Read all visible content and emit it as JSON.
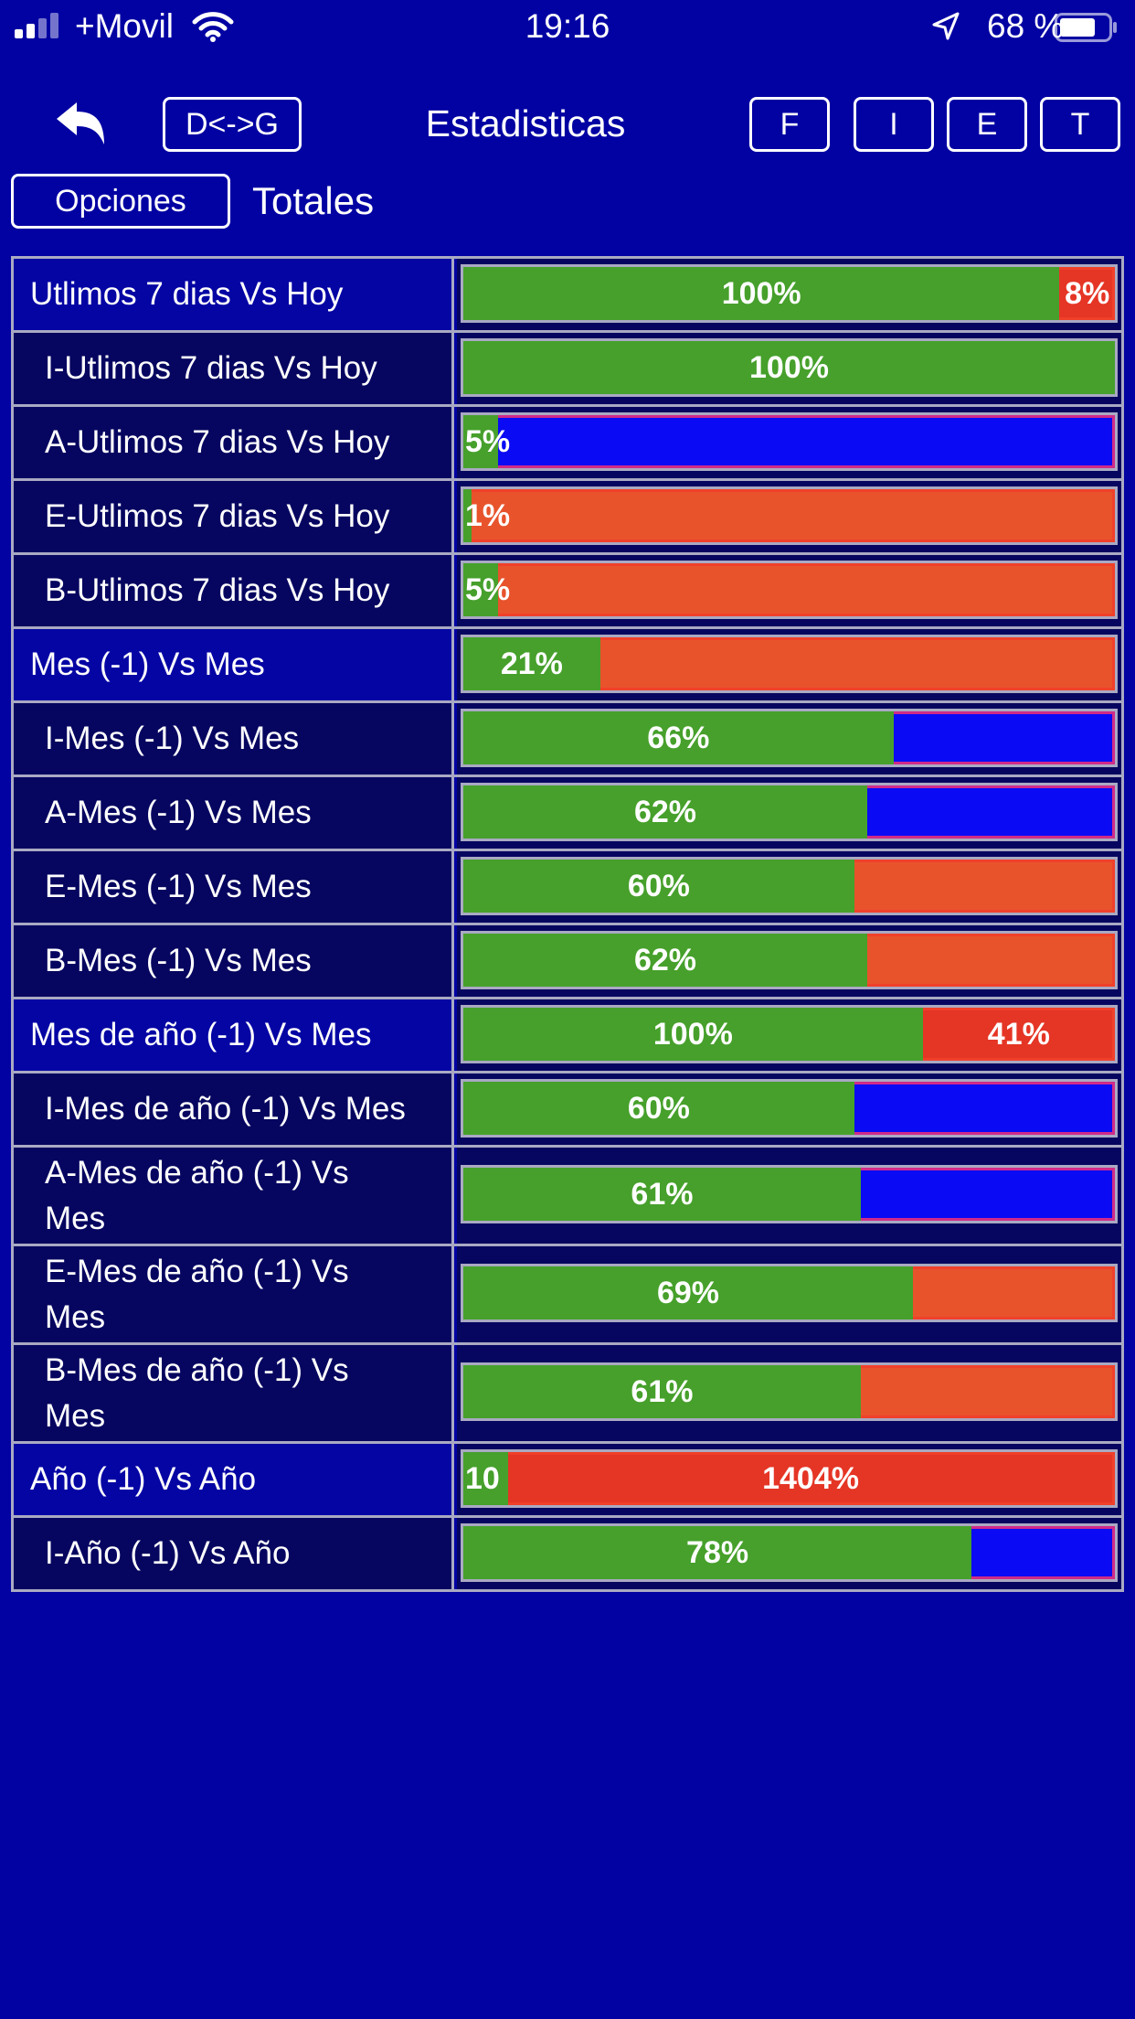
{
  "status_bar": {
    "carrier": "+Movil",
    "time": "19:16",
    "battery_pct": "68 %"
  },
  "nav": {
    "toggle_label": "D<->G",
    "title": "Estadisticas",
    "filters": [
      "F",
      "I",
      "E",
      "T"
    ],
    "options_label": "Opciones",
    "subtitle": "Totales"
  },
  "colors": {
    "background": "#0202a3",
    "green": "#46a02b",
    "blue": "#0a0af5",
    "orange": "#e8532c",
    "red": "#e53525"
  },
  "rows": [
    {
      "label": "Utlimos 7 dias Vs Hoy",
      "level": "main",
      "green_label": "100%",
      "green_fraction": 0.915,
      "rest_label": "8%",
      "rest_color": "red"
    },
    {
      "label": "I-Utlimos 7 dias Vs Hoy",
      "level": "sub",
      "green_label": "100%",
      "green_fraction": 1.0,
      "rest_label": "",
      "rest_color": "blue"
    },
    {
      "label": "A-Utlimos 7 dias Vs Hoy",
      "level": "sub",
      "green_label": "5%",
      "green_fraction": 0.05,
      "rest_label": "",
      "rest_color": "blue"
    },
    {
      "label": "E-Utlimos 7 dias Vs Hoy",
      "level": "sub",
      "green_label": "1%",
      "green_fraction": 0.01,
      "rest_label": "",
      "rest_color": "orange"
    },
    {
      "label": "B-Utlimos 7 dias Vs Hoy",
      "level": "sub",
      "green_label": "5%",
      "green_fraction": 0.05,
      "rest_label": "",
      "rest_color": "orange"
    },
    {
      "label": "Mes (-1) Vs Mes",
      "level": "main",
      "green_label": "21%",
      "green_fraction": 0.21,
      "rest_label": "",
      "rest_color": "orange"
    },
    {
      "label": "I-Mes (-1) Vs Mes",
      "level": "sub",
      "green_label": "66%",
      "green_fraction": 0.66,
      "rest_label": "",
      "rest_color": "blue"
    },
    {
      "label": "A-Mes (-1) Vs Mes",
      "level": "sub",
      "green_label": "62%",
      "green_fraction": 0.62,
      "rest_label": "",
      "rest_color": "blue"
    },
    {
      "label": "E-Mes (-1) Vs Mes",
      "level": "sub",
      "green_label": "60%",
      "green_fraction": 0.6,
      "rest_label": "",
      "rest_color": "orange"
    },
    {
      "label": "B-Mes (-1) Vs Mes",
      "level": "sub",
      "green_label": "62%",
      "green_fraction": 0.62,
      "rest_label": "",
      "rest_color": "orange"
    },
    {
      "label": "Mes de año (-1) Vs Mes",
      "level": "main",
      "green_label": "100%",
      "green_fraction": 0.705,
      "rest_label": "41%",
      "rest_color": "red"
    },
    {
      "label": "I-Mes de año (-1) Vs Mes",
      "level": "sub",
      "green_label": "60%",
      "green_fraction": 0.6,
      "rest_label": "",
      "rest_color": "blue"
    },
    {
      "label": "A-Mes de año (-1) Vs Mes",
      "level": "sub",
      "tall": true,
      "green_label": "61%",
      "green_fraction": 0.61,
      "rest_label": "",
      "rest_color": "blue"
    },
    {
      "label": "E-Mes de año (-1) Vs Mes",
      "level": "sub",
      "tall": true,
      "green_label": "69%",
      "green_fraction": 0.69,
      "rest_label": "",
      "rest_color": "orange"
    },
    {
      "label": "B-Mes de año (-1) Vs Mes",
      "level": "sub",
      "tall": true,
      "green_label": "61%",
      "green_fraction": 0.61,
      "rest_label": "",
      "rest_color": "orange"
    },
    {
      "label": "Año (-1) Vs Año",
      "level": "main",
      "green_label": "10",
      "green_fraction": 0.066,
      "rest_label": "1404%",
      "rest_color": "red"
    },
    {
      "label": "I-Año (-1) Vs Año",
      "level": "sub",
      "green_label": "78%",
      "green_fraction": 0.78,
      "rest_label": "",
      "rest_color": "blue"
    }
  ]
}
